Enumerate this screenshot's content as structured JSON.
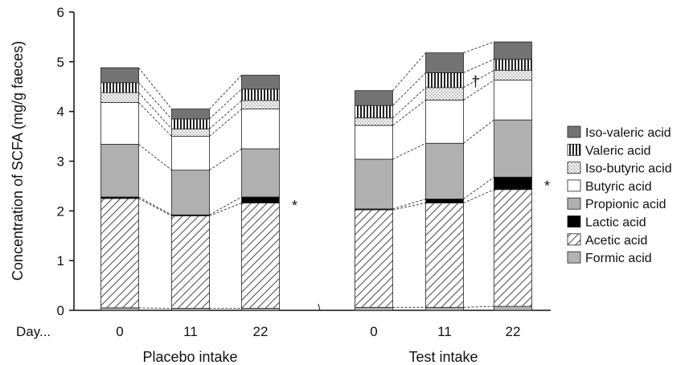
{
  "chart_data": {
    "type": "bar",
    "stacked": true,
    "ylabel": "Concentration of SCFA (mg/g faeces)",
    "ylim": [
      0,
      6
    ],
    "yticks": [
      0,
      1,
      2,
      3,
      4,
      5,
      6
    ],
    "x_prefix_label": "Day...",
    "groups": [
      {
        "label": "Placebo intake",
        "days": [
          "0",
          "11",
          "22"
        ]
      },
      {
        "label": "Test intake",
        "days": [
          "0",
          "11",
          "22"
        ]
      }
    ],
    "series": [
      {
        "name": "Formic acid",
        "fill": "lightgray",
        "values": [
          0.05,
          0.04,
          0.04,
          0.06,
          0.06,
          0.08
        ]
      },
      {
        "name": "Acetic acid",
        "fill": "hatch",
        "values": [
          2.2,
          1.86,
          2.12,
          1.96,
          2.1,
          2.35
        ]
      },
      {
        "name": "Lactic acid",
        "fill": "black",
        "values": [
          0.03,
          0.02,
          0.12,
          0.02,
          0.08,
          0.25
        ]
      },
      {
        "name": "Propionic acid",
        "fill": "gray",
        "values": [
          1.06,
          0.9,
          0.97,
          1.0,
          1.12,
          1.15
        ]
      },
      {
        "name": "Butyric acid",
        "fill": "white",
        "values": [
          0.84,
          0.68,
          0.8,
          0.68,
          0.87,
          0.8
        ]
      },
      {
        "name": "Iso-butyric acid",
        "fill": "dots",
        "values": [
          0.2,
          0.15,
          0.17,
          0.15,
          0.25,
          0.2
        ]
      },
      {
        "name": "Valeric acid",
        "fill": "vstripes",
        "values": [
          0.2,
          0.2,
          0.23,
          0.25,
          0.3,
          0.22
        ]
      },
      {
        "name": "Iso-valeric acid",
        "fill": "darkgray",
        "values": [
          0.3,
          0.2,
          0.28,
          0.3,
          0.4,
          0.35
        ]
      }
    ],
    "legend_order": [
      "Iso-valeric acid",
      "Valeric acid",
      "Iso-butyric acid",
      "Butyric acid",
      "Propionic acid",
      "Lactic acid",
      "Acetic acid",
      "Formic acid"
    ],
    "legend_position": "right",
    "annotations": [
      {
        "text": "*",
        "bar": 2,
        "y": 2.1
      },
      {
        "text": "*",
        "bar": 5,
        "y": 2.5
      },
      {
        "text": "†",
        "bar": 4,
        "y": 4.6
      }
    ],
    "grid": false
  }
}
